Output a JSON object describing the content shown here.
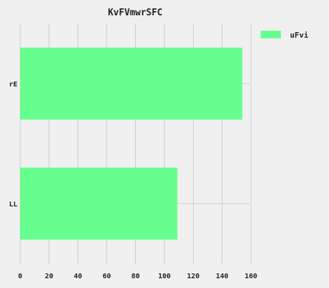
{
  "chart_data": {
    "type": "bar",
    "orientation": "horizontal",
    "title": "KvFVmwrSFC",
    "xlabel": "",
    "ylabel": "",
    "categories": [
      "rE",
      "LL"
    ],
    "series": [
      {
        "name": "uFvi",
        "values": [
          154,
          109
        ]
      }
    ],
    "xlim": [
      0,
      160
    ],
    "xticks": [
      "0",
      "20",
      "40",
      "60",
      "80",
      "100",
      "120",
      "140",
      "160"
    ],
    "grid": true,
    "legend_position": "top-right",
    "colors": {
      "bar": "#66ff8f",
      "background": "#f0f0f0",
      "grid": "#cbcbcb",
      "text": "#222222"
    }
  }
}
